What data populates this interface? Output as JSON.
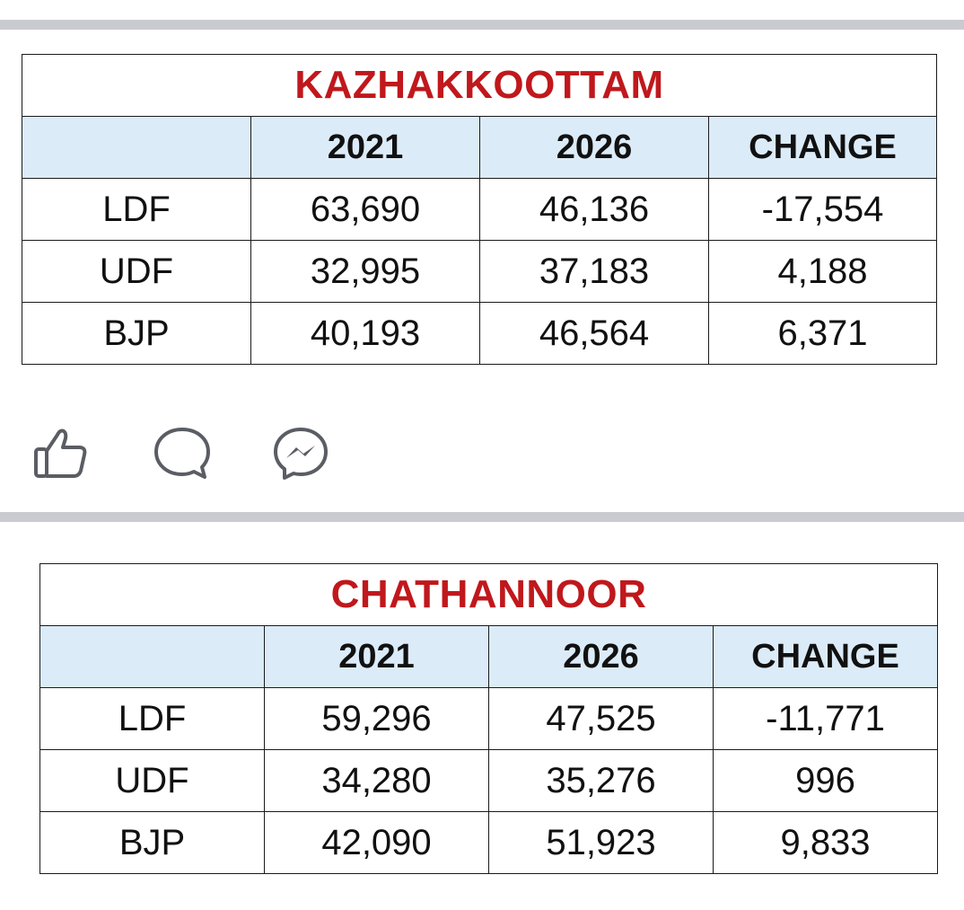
{
  "tables": [
    {
      "title": "KAZHAKKOOTTAM",
      "headers": [
        "",
        "2021",
        "2026",
        "CHANGE"
      ],
      "rows": [
        {
          "party": "LDF",
          "y2021": "63,690",
          "y2026": "46,136",
          "change": "-17,554"
        },
        {
          "party": "UDF",
          "y2021": "32,995",
          "y2026": "37,183",
          "change": "4,188"
        },
        {
          "party": "BJP",
          "y2021": "40,193",
          "y2026": "46,564",
          "change": "6,371"
        }
      ]
    },
    {
      "title": "CHATHANNOOR",
      "headers": [
        "",
        "2021",
        "2026",
        "CHANGE"
      ],
      "rows": [
        {
          "party": "LDF",
          "y2021": "59,296",
          "y2026": "47,525",
          "change": "-11,771"
        },
        {
          "party": "UDF",
          "y2021": "34,280",
          "y2026": "35,276",
          "change": "996"
        },
        {
          "party": "BJP",
          "y2021": "42,090",
          "y2026": "51,923",
          "change": "9,833"
        }
      ]
    }
  ],
  "actions": {
    "like_icon": "thumbs-up-icon",
    "comment_icon": "comment-icon",
    "share_icon": "messenger-icon"
  },
  "colors": {
    "title": "#c0181c",
    "header_bg": "#dcebf8",
    "separator": "#c9cbd1",
    "icon": "#5a5d63"
  }
}
